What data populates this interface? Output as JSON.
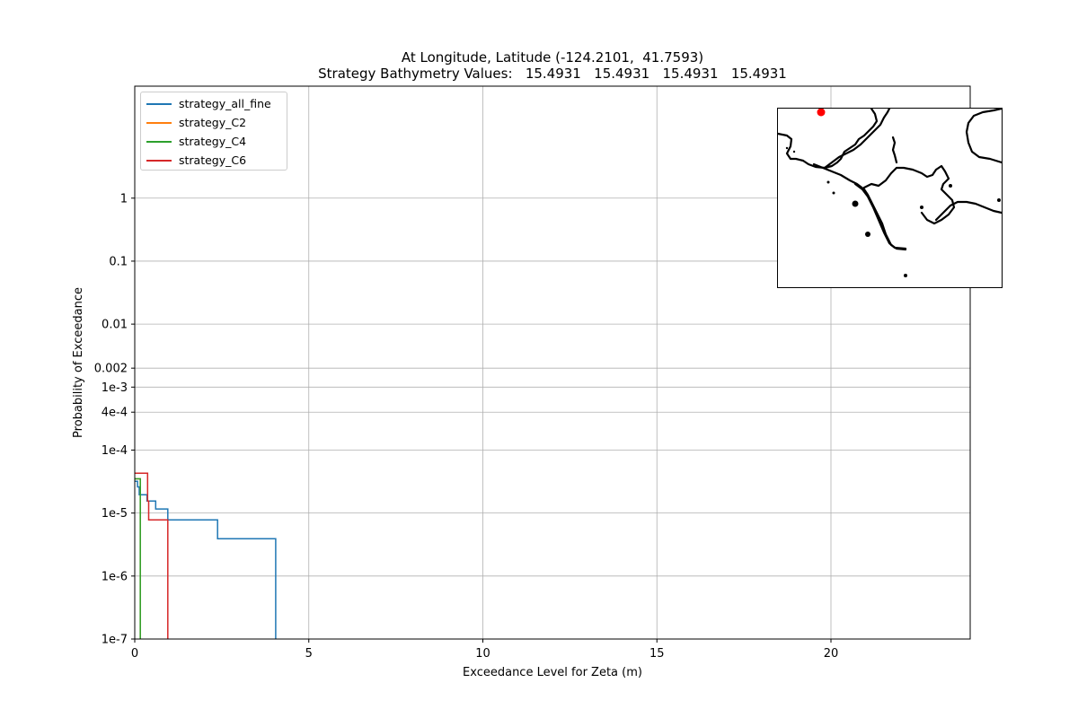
{
  "chart_data": {
    "type": "line",
    "title_lines": [
      "At Longitude, Latitude (-124.2101,  41.7593)",
      "Strategy Bathymetry Values:   15.4931   15.4931   15.4931   15.4931"
    ],
    "xlabel": "Exceedance Level for Zeta (m)",
    "ylabel": "Probability of Exceedance",
    "xlim": [
      0,
      24
    ],
    "ylim": [
      1e-07,
      60
    ],
    "yscale": "log",
    "grid": true,
    "legend_position": "upper-left",
    "xticks": [
      {
        "value": 0,
        "label": "0"
      },
      {
        "value": 5,
        "label": "5"
      },
      {
        "value": 10,
        "label": "10"
      },
      {
        "value": 15,
        "label": "15"
      },
      {
        "value": 20,
        "label": "20"
      }
    ],
    "yticks": [
      {
        "value": 1,
        "label": "1"
      },
      {
        "value": 0.1,
        "label": "0.1"
      },
      {
        "value": 0.01,
        "label": "0.01"
      },
      {
        "value": 0.002,
        "label": "0.002"
      },
      {
        "value": 0.001,
        "label": "1e-3"
      },
      {
        "value": 0.0004,
        "label": "4e-4"
      },
      {
        "value": 0.0001,
        "label": "1e-4"
      },
      {
        "value": 1e-05,
        "label": "1e-5"
      },
      {
        "value": 1e-06,
        "label": "1e-6"
      },
      {
        "value": 1e-07,
        "label": "1e-7"
      }
    ],
    "series": [
      {
        "name": "strategy_all_fine",
        "color": "#1f77b4",
        "points": [
          [
            0,
            3.2e-05
          ],
          [
            0.08,
            3.2e-05
          ],
          [
            0.08,
            2.6e-05
          ],
          [
            0.13,
            2.6e-05
          ],
          [
            0.13,
            1.95e-05
          ],
          [
            0.35,
            1.95e-05
          ],
          [
            0.35,
            1.55e-05
          ],
          [
            0.6,
            1.55e-05
          ],
          [
            0.6,
            1.16e-05
          ],
          [
            0.95,
            1.16e-05
          ],
          [
            0.95,
            7.8e-06
          ],
          [
            2.38,
            7.8e-06
          ],
          [
            2.38,
            3.9e-06
          ],
          [
            4.05,
            3.9e-06
          ],
          [
            4.05,
            1e-07
          ]
        ]
      },
      {
        "name": "strategy_C2",
        "color": "#ff7f0e",
        "points": [
          [
            0,
            3.5e-05
          ],
          [
            0.16,
            3.5e-05
          ],
          [
            0.16,
            1e-07
          ]
        ]
      },
      {
        "name": "strategy_C4",
        "color": "#2ca02c",
        "points": [
          [
            0,
            3.5e-05
          ],
          [
            0.16,
            3.5e-05
          ],
          [
            0.16,
            1e-07
          ]
        ]
      },
      {
        "name": "strategy_C6",
        "color": "#d62728",
        "points": [
          [
            0,
            4.3e-05
          ],
          [
            0.37,
            4.3e-05
          ],
          [
            0.37,
            1.55e-05
          ],
          [
            0.4,
            1.55e-05
          ],
          [
            0.4,
            7.8e-06
          ],
          [
            0.95,
            7.8e-06
          ],
          [
            0.95,
            1e-07
          ]
        ]
      }
    ],
    "inset_map": {
      "type": "coastline-map",
      "marker_color": "#ff0000"
    }
  }
}
